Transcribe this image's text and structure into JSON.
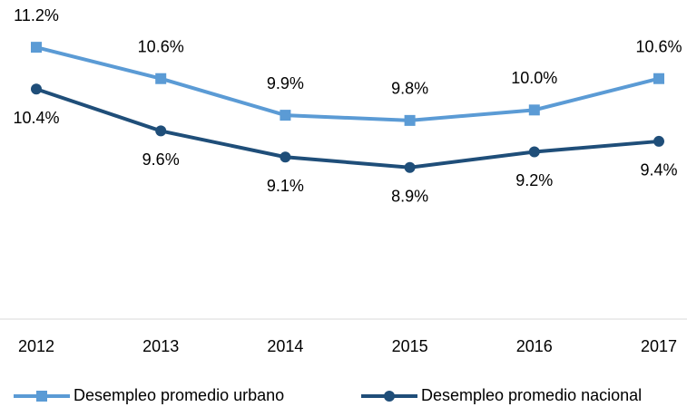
{
  "chart_data": {
    "type": "line",
    "categories": [
      "2012",
      "2013",
      "2014",
      "2015",
      "2016",
      "2017"
    ],
    "series": [
      {
        "name": "Desempleo promedio urbano",
        "color": "#5b9bd5",
        "marker": "square",
        "values": [
          11.2,
          10.6,
          9.9,
          9.8,
          10.0,
          10.6
        ],
        "value_labels": [
          "11.2%",
          "10.6%",
          "9.9%",
          "9.8%",
          "10.0%",
          "10.6%"
        ]
      },
      {
        "name": "Desempleo promedio nacional",
        "color": "#1f4e79",
        "marker": "circle",
        "values": [
          10.4,
          9.6,
          9.1,
          8.9,
          9.2,
          9.4
        ],
        "value_labels": [
          "10.4%",
          "9.6%",
          "9.1%",
          "8.9%",
          "9.2%",
          "9.4%"
        ]
      }
    ],
    "ylim": [
      6,
      12
    ],
    "legend": "bottom"
  }
}
